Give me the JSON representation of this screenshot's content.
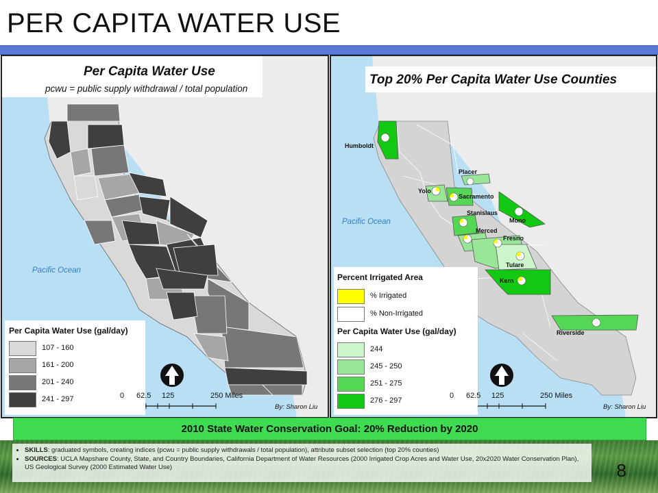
{
  "slide": {
    "title": "PER CAPITA WATER USE",
    "page_number": "8",
    "goal_banner": "2010 State Water Conservation Goal: 20% Reduction by 2020"
  },
  "left_map": {
    "title": "Per Capita Water Use",
    "subtitle": "pcwu = public supply withdrawal / total population",
    "ocean_label": "Pacific Ocean",
    "legend": {
      "title": "Per Capita Water Use (gal/day)",
      "items": [
        {
          "label": "107 - 160",
          "color": "#d9d9d9"
        },
        {
          "label": "161 - 200",
          "color": "#a6a6a6"
        },
        {
          "label": "201 - 240",
          "color": "#777777"
        },
        {
          "label": "241 - 297",
          "color": "#3f3f3f"
        }
      ]
    },
    "scale": {
      "ticks": [
        "0",
        "62.5",
        "125",
        "250 Miles"
      ]
    },
    "byline": "By: Sharon Liu"
  },
  "right_map": {
    "title": "Top 20% Per Capita Water Use Counties",
    "ocean_label": "Pacific Ocean",
    "irrigated_legend": {
      "title": "Percent Irrigated Area",
      "items": [
        {
          "label": "% Irrigated",
          "color": "#ffff00"
        },
        {
          "label": "% Non-Irrigated",
          "color": "#ffffff"
        }
      ]
    },
    "use_legend": {
      "title": "Per Capita Water Use (gal/day)",
      "items": [
        {
          "label": "244",
          "color": "#ccf5cc"
        },
        {
          "label": "245 - 250",
          "color": "#99e699"
        },
        {
          "label": "251 - 275",
          "color": "#55d655"
        },
        {
          "label": "276 - 297",
          "color": "#12c812"
        }
      ]
    },
    "counties": [
      "Humboldt",
      "Placer",
      "Yolo",
      "Sacramento",
      "Stanislaus",
      "Mono",
      "Merced",
      "Fresno",
      "Tulare",
      "Kern",
      "Riverside"
    ],
    "scale": {
      "ticks": [
        "0",
        "62.5",
        "125",
        "250 Miles"
      ]
    },
    "byline": "By: Sharon Liu"
  },
  "notes": [
    {
      "label": "SKILLS",
      "text": ": graduated symbols, creating indices (pcwu = public supply withdrawals / total population), attribute subset selection (top 20% counties)"
    },
    {
      "label": "SOURCES",
      "text": ": UCLA Mapshare County, State, and Country Boundaries, California Department of Water Resources (2000 Irrigated Crop Acres and Water Use, 20x2020 Water Conservation Plan), US Geological Survey (2000 Estimated Water Use)"
    }
  ]
}
